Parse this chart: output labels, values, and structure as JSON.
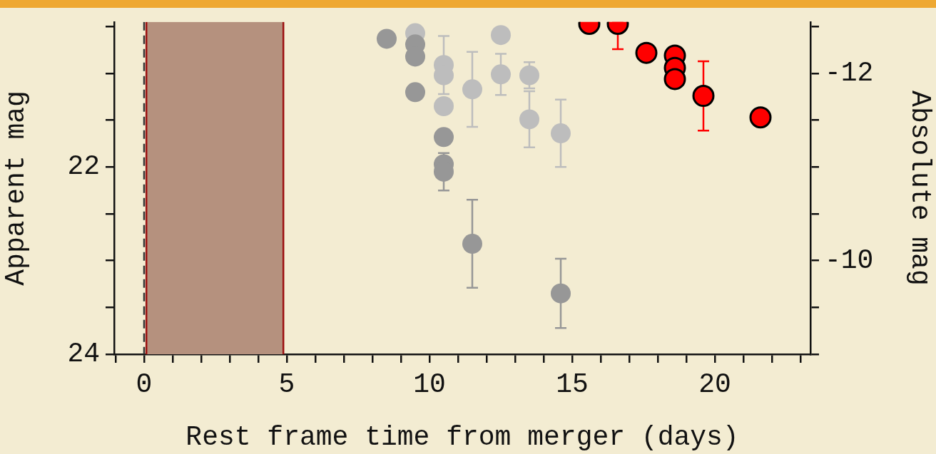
{
  "chart_data": {
    "type": "scatter",
    "xlabel": "Rest frame time from merger (days)",
    "ylabel": "Apparent mag",
    "y2label": "Absolute mag",
    "marker": "circle",
    "xlim": [
      -1.05,
      23.35
    ],
    "xticks": [
      {
        "value": -1,
        "label": null
      },
      0,
      {
        "value": 1,
        "label": null
      },
      {
        "value": 2,
        "label": null
      },
      {
        "value": 3,
        "label": null
      },
      {
        "value": 4,
        "label": null
      },
      5,
      {
        "value": 6,
        "label": null
      },
      {
        "value": 7,
        "label": null
      },
      {
        "value": 8,
        "label": null
      },
      {
        "value": 9,
        "label": null
      },
      10,
      {
        "value": 11,
        "label": null
      },
      {
        "value": 12,
        "label": null
      },
      {
        "value": 13,
        "label": null
      },
      {
        "value": 14,
        "label": null
      },
      15,
      {
        "value": 16,
        "label": null
      },
      {
        "value": 17,
        "label": null
      },
      {
        "value": 18,
        "label": null
      },
      {
        "value": 19,
        "label": null
      },
      20,
      {
        "value": 21,
        "label": null
      },
      {
        "value": 22,
        "label": null
      },
      {
        "value": 23,
        "label": null
      }
    ],
    "ylim": [
      24,
      20.45
    ],
    "yticks": [
      {
        "value": 20.5,
        "label": null
      },
      {
        "value": 21,
        "label": null
      },
      {
        "value": 21.5,
        "label": null
      },
      22,
      {
        "value": 22.5,
        "label": null
      },
      {
        "value": 23,
        "label": null
      },
      {
        "value": 23.5,
        "label": null
      },
      24
    ],
    "y2lim": [
      -9,
      -12.55
    ],
    "y2ticks": [
      {
        "value": -12.5,
        "label": null
      },
      -12,
      {
        "value": -11.5,
        "label": null
      },
      {
        "value": -11,
        "label": null
      },
      {
        "value": -10.5,
        "label": null
      },
      -10,
      {
        "value": -9.5,
        "label": null
      },
      {
        "value": -9,
        "label": null
      }
    ],
    "bands": [
      {
        "axis": "x",
        "from": 0.08,
        "to": 4.88,
        "color": "#b5917e"
      }
    ],
    "ref_lines": [
      {
        "axis": "x",
        "value": 0,
        "line_style": "dashed",
        "color": "#333333"
      },
      {
        "axis": "x",
        "value": 0.08,
        "line_style": "solid",
        "color": "#9c1010"
      },
      {
        "axis": "x",
        "value": 4.88,
        "line_style": "solid",
        "color": "#9c1010"
      }
    ],
    "series": [
      {
        "color": "#979797",
        "x": [
          8.5,
          9.5,
          9.5,
          9.5,
          10.5,
          10.5,
          10.5,
          11.5,
          14.6
        ],
        "values": [
          20.63,
          20.69,
          20.82,
          21.2,
          21.68,
          21.97,
          22.05,
          22.82,
          23.35
        ],
        "errors": [
          null,
          null,
          null,
          null,
          null,
          null,
          0.2,
          0.47,
          0.37
        ]
      },
      {
        "color": "#bdbdbd",
        "x": [
          9.5,
          10.5,
          10.5,
          10.5,
          11.5,
          12.5,
          12.5,
          13.5,
          13.5,
          14.6
        ],
        "values": [
          20.57,
          20.91,
          21.02,
          21.35,
          21.17,
          20.59,
          21.01,
          21.02,
          21.49,
          21.64
        ],
        "errors": [
          null,
          0.31,
          null,
          null,
          0.4,
          null,
          0.22,
          0.14,
          0.3,
          0.36
        ]
      },
      {
        "color": "#ff0000",
        "x": [
          15.6,
          16.6,
          17.6,
          18.6,
          18.6,
          18.6,
          19.6,
          21.6
        ],
        "values": [
          20.47,
          20.47,
          20.78,
          20.81,
          20.94,
          21.06,
          21.24,
          21.47
        ],
        "errors": [
          null,
          [
            20.45,
            20.74
          ],
          null,
          null,
          null,
          null,
          0.37,
          null
        ]
      }
    ]
  }
}
